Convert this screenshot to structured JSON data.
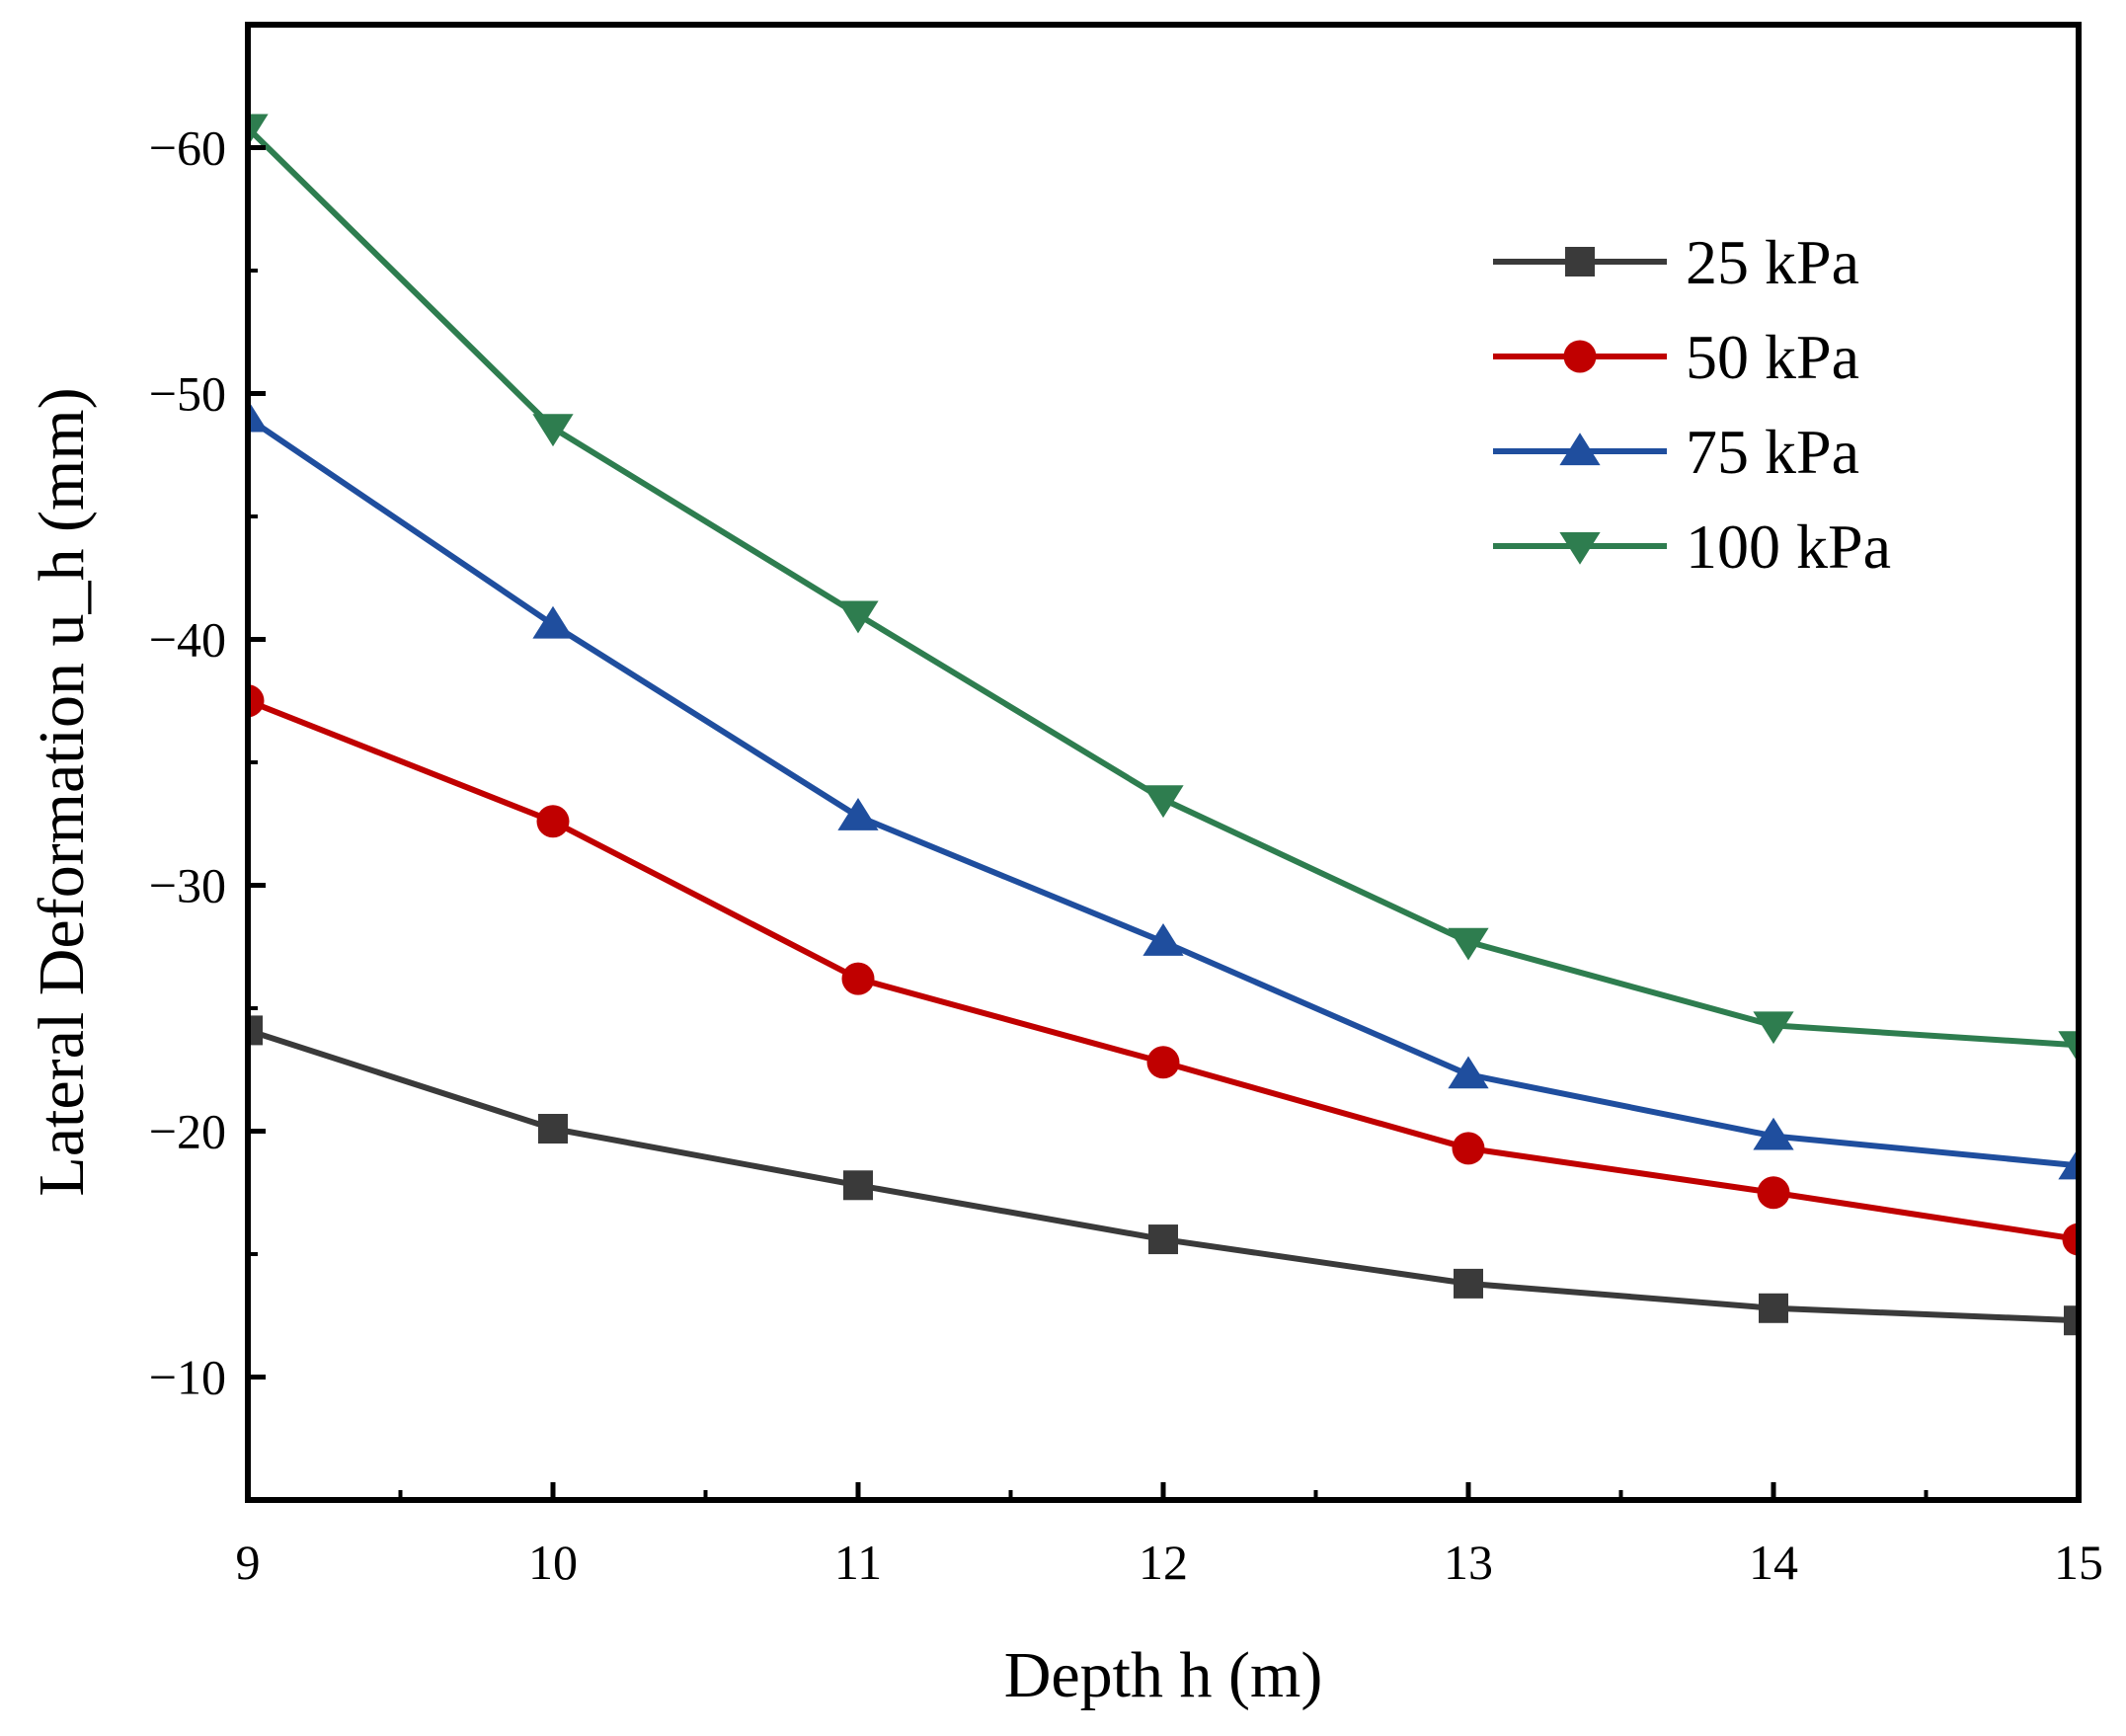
{
  "chart_data": {
    "type": "line",
    "title": "",
    "xlabel": "Depth h (m)",
    "ylabel": "Lateral Deformation u_h (mm)",
    "x": [
      9,
      10,
      11,
      12,
      13,
      14,
      15
    ],
    "xlim": [
      9,
      15
    ],
    "ylim": [
      -5,
      -65
    ],
    "y_axis_reversed": true,
    "xticks": [
      9,
      10,
      11,
      12,
      13,
      14,
      15
    ],
    "xtick_labels": [
      "9",
      "10",
      "11",
      "12",
      "13",
      "14",
      "15"
    ],
    "yticks": [
      -10,
      -20,
      -30,
      -40,
      -50,
      -60
    ],
    "ytick_labels": [
      "−10",
      "−20",
      "−30",
      "−40",
      "−50",
      "−60"
    ],
    "grid": false,
    "legend_position": "top-right",
    "series": [
      {
        "name": "25 kPa",
        "color": "#3a3a3a",
        "marker": "square",
        "values": [
          -24.1,
          -20.1,
          -17.8,
          -15.6,
          -13.8,
          -12.8,
          -12.3
        ]
      },
      {
        "name": "50 kPa",
        "color": "#c00000",
        "marker": "circle",
        "values": [
          -37.5,
          -32.6,
          -26.2,
          -22.8,
          -19.3,
          -17.5,
          -15.6
        ]
      },
      {
        "name": "75 kPa",
        "color": "#1f4e9e",
        "marker": "triangle-up",
        "values": [
          -49.0,
          -40.6,
          -32.8,
          -27.7,
          -22.3,
          -19.8,
          -18.6
        ]
      },
      {
        "name": "100 kPa",
        "color": "#2e7d4f",
        "marker": "triangle-down",
        "values": [
          -60.8,
          -48.6,
          -41.0,
          -33.5,
          -27.7,
          -24.3,
          -23.5
        ]
      }
    ]
  }
}
